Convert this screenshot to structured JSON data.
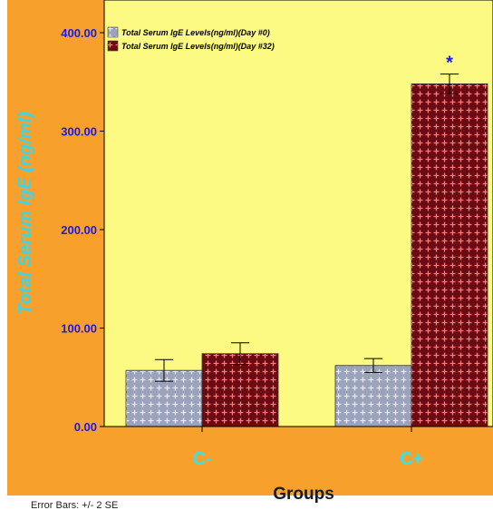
{
  "colors": {
    "frame_bg": "#f7a12c",
    "plot_bg": "#fdfa84",
    "bar_day0": "#9aa3bb",
    "bar_day0_pattern": "#e6e9f3",
    "bar_day32": "#6a0a12",
    "bar_day32_pattern": "#ff7a7a",
    "ytick_text": "#1a1ae6",
    "xtick_text": "#36e2f0",
    "ylabel_text": "#3ad6ea",
    "xlabel_text": "#1a1a1a",
    "annotation": "#1a1ae6"
  },
  "chart_data": {
    "type": "bar",
    "xlabel": "Groups",
    "ylabel": "Total Serum IgE (ng/ml)",
    "categories": [
      "C-",
      "C+"
    ],
    "yticks": [
      "0.00",
      "100.00",
      "200.00",
      "300.00",
      "400.00"
    ],
    "ylim": [
      0,
      400
    ],
    "grid": false,
    "legend_position": "top-left",
    "series": [
      {
        "name": "Total Serum IgE Levels(ng/ml)(Day #0)",
        "values": [
          57,
          62
        ],
        "error_bars": [
          11,
          7
        ]
      },
      {
        "name": "Total Serum IgE Levels(ng/ml)(Day #32)",
        "values": [
          74,
          348
        ],
        "error_bars": [
          11,
          10
        ]
      }
    ],
    "annotations": [
      {
        "text": "*",
        "category": "C+",
        "series": 1
      }
    ],
    "footnote": "Error Bars: +/-  2 SE"
  }
}
